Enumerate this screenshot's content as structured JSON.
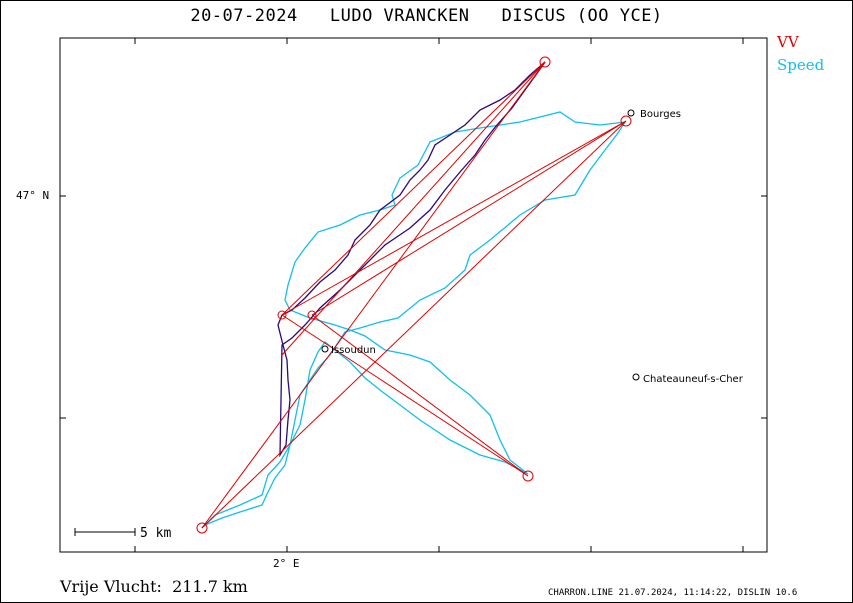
{
  "title": "20-07-2024   LUDO VRANCKEN   DISCUS (OO YCE)",
  "legend": {
    "vv_label": "VV",
    "speed_label": "Speed",
    "vv_color": "#e00000",
    "speed_color": "#11c0e8",
    "track_color": "#2a0a7a"
  },
  "axes": {
    "lat_label": "47° N",
    "lon_label": "2° E"
  },
  "scale_bar": {
    "label": "5 km"
  },
  "cities": [
    {
      "name": "Bourges"
    },
    {
      "name": "Issoudun"
    },
    {
      "name": "Chateauneuf-s-Cher"
    }
  ],
  "footer": {
    "distance_text": "Vrije Vlucht:  211.7 km",
    "credit_text": "CHARRON.LINE 21.07.2024, 11:14:22, DISLIN 10.6"
  }
}
